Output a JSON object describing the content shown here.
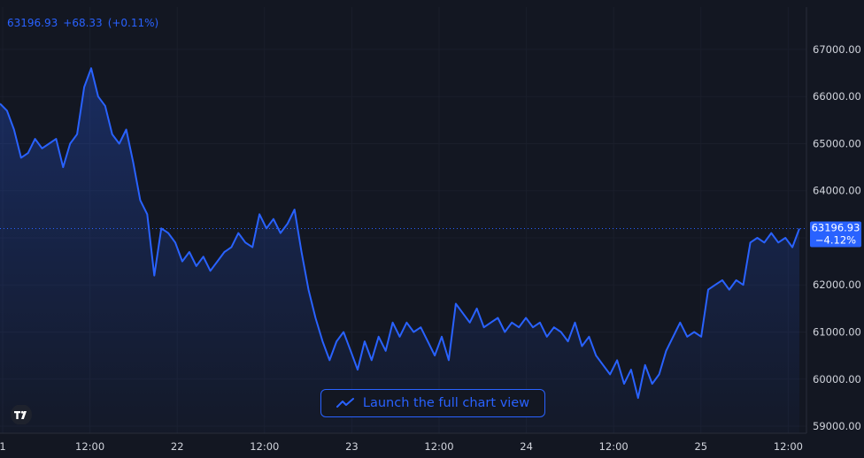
{
  "header": {
    "price": "63196.93",
    "change": "+68.33",
    "change_pct": "(+0.11%)"
  },
  "cta": {
    "label": "Launch the full chart view",
    "icon": "trend-line-icon"
  },
  "logo": {
    "icon": "tradingview-logo-icon"
  },
  "colors": {
    "background": "#131722",
    "line": "#2962ff",
    "grid": "#1f2331"
  },
  "chart_data": {
    "type": "area",
    "x_tick_labels": [
      "1",
      "12:00",
      "22",
      "12:00",
      "23",
      "12:00",
      "24",
      "12:00",
      "25",
      "12:00"
    ],
    "y_ticks": [
      59000,
      60000,
      61000,
      62000,
      63000,
      64000,
      65000,
      66000,
      67000
    ],
    "y_tick_labels": [
      "59000.00",
      "60000.00",
      "61000.00",
      "62000.00",
      "63000.00",
      "64000.00",
      "65000.00",
      "66000.00",
      "67000.00"
    ],
    "ylim": [
      58850,
      67900
    ],
    "last_price": 63196.93,
    "last_price_label": "63196.93",
    "last_change_label": "−4.12%",
    "series": [
      {
        "values": [
          65850,
          65700,
          65300,
          64700,
          64800,
          65100,
          64900,
          65000,
          65100,
          64500,
          65000,
          65200,
          66200,
          66600,
          66000,
          65800,
          65200,
          65000,
          65300,
          64600,
          63800,
          63500,
          62200,
          63200,
          63100,
          62900,
          62500,
          62700,
          62400,
          62600,
          62300,
          62500,
          62700,
          62800,
          63100,
          62900,
          62800,
          63500,
          63200,
          63400,
          63100,
          63300,
          63600,
          62700,
          61900,
          61300,
          60800,
          60400,
          60800,
          61000,
          60600,
          60200,
          60800,
          60400,
          60900,
          60600,
          61200,
          60900,
          61200,
          61000,
          61100,
          60800,
          60500,
          60900,
          60400,
          61600,
          61400,
          61200,
          61500,
          61100,
          61200,
          61300,
          61000,
          61200,
          61100,
          61300,
          61100,
          61200,
          60900,
          61100,
          61000,
          60800,
          61200,
          60700,
          60900,
          60500,
          60300,
          60100,
          60400,
          59900,
          60200,
          59600,
          60300,
          59900,
          60100,
          60600,
          60900,
          61200,
          60900,
          61000,
          60900,
          61900,
          62000,
          62100,
          61900,
          62100,
          62000,
          62900,
          63000,
          62900,
          63100,
          62900,
          63000,
          62800,
          63196.93
        ]
      }
    ]
  }
}
